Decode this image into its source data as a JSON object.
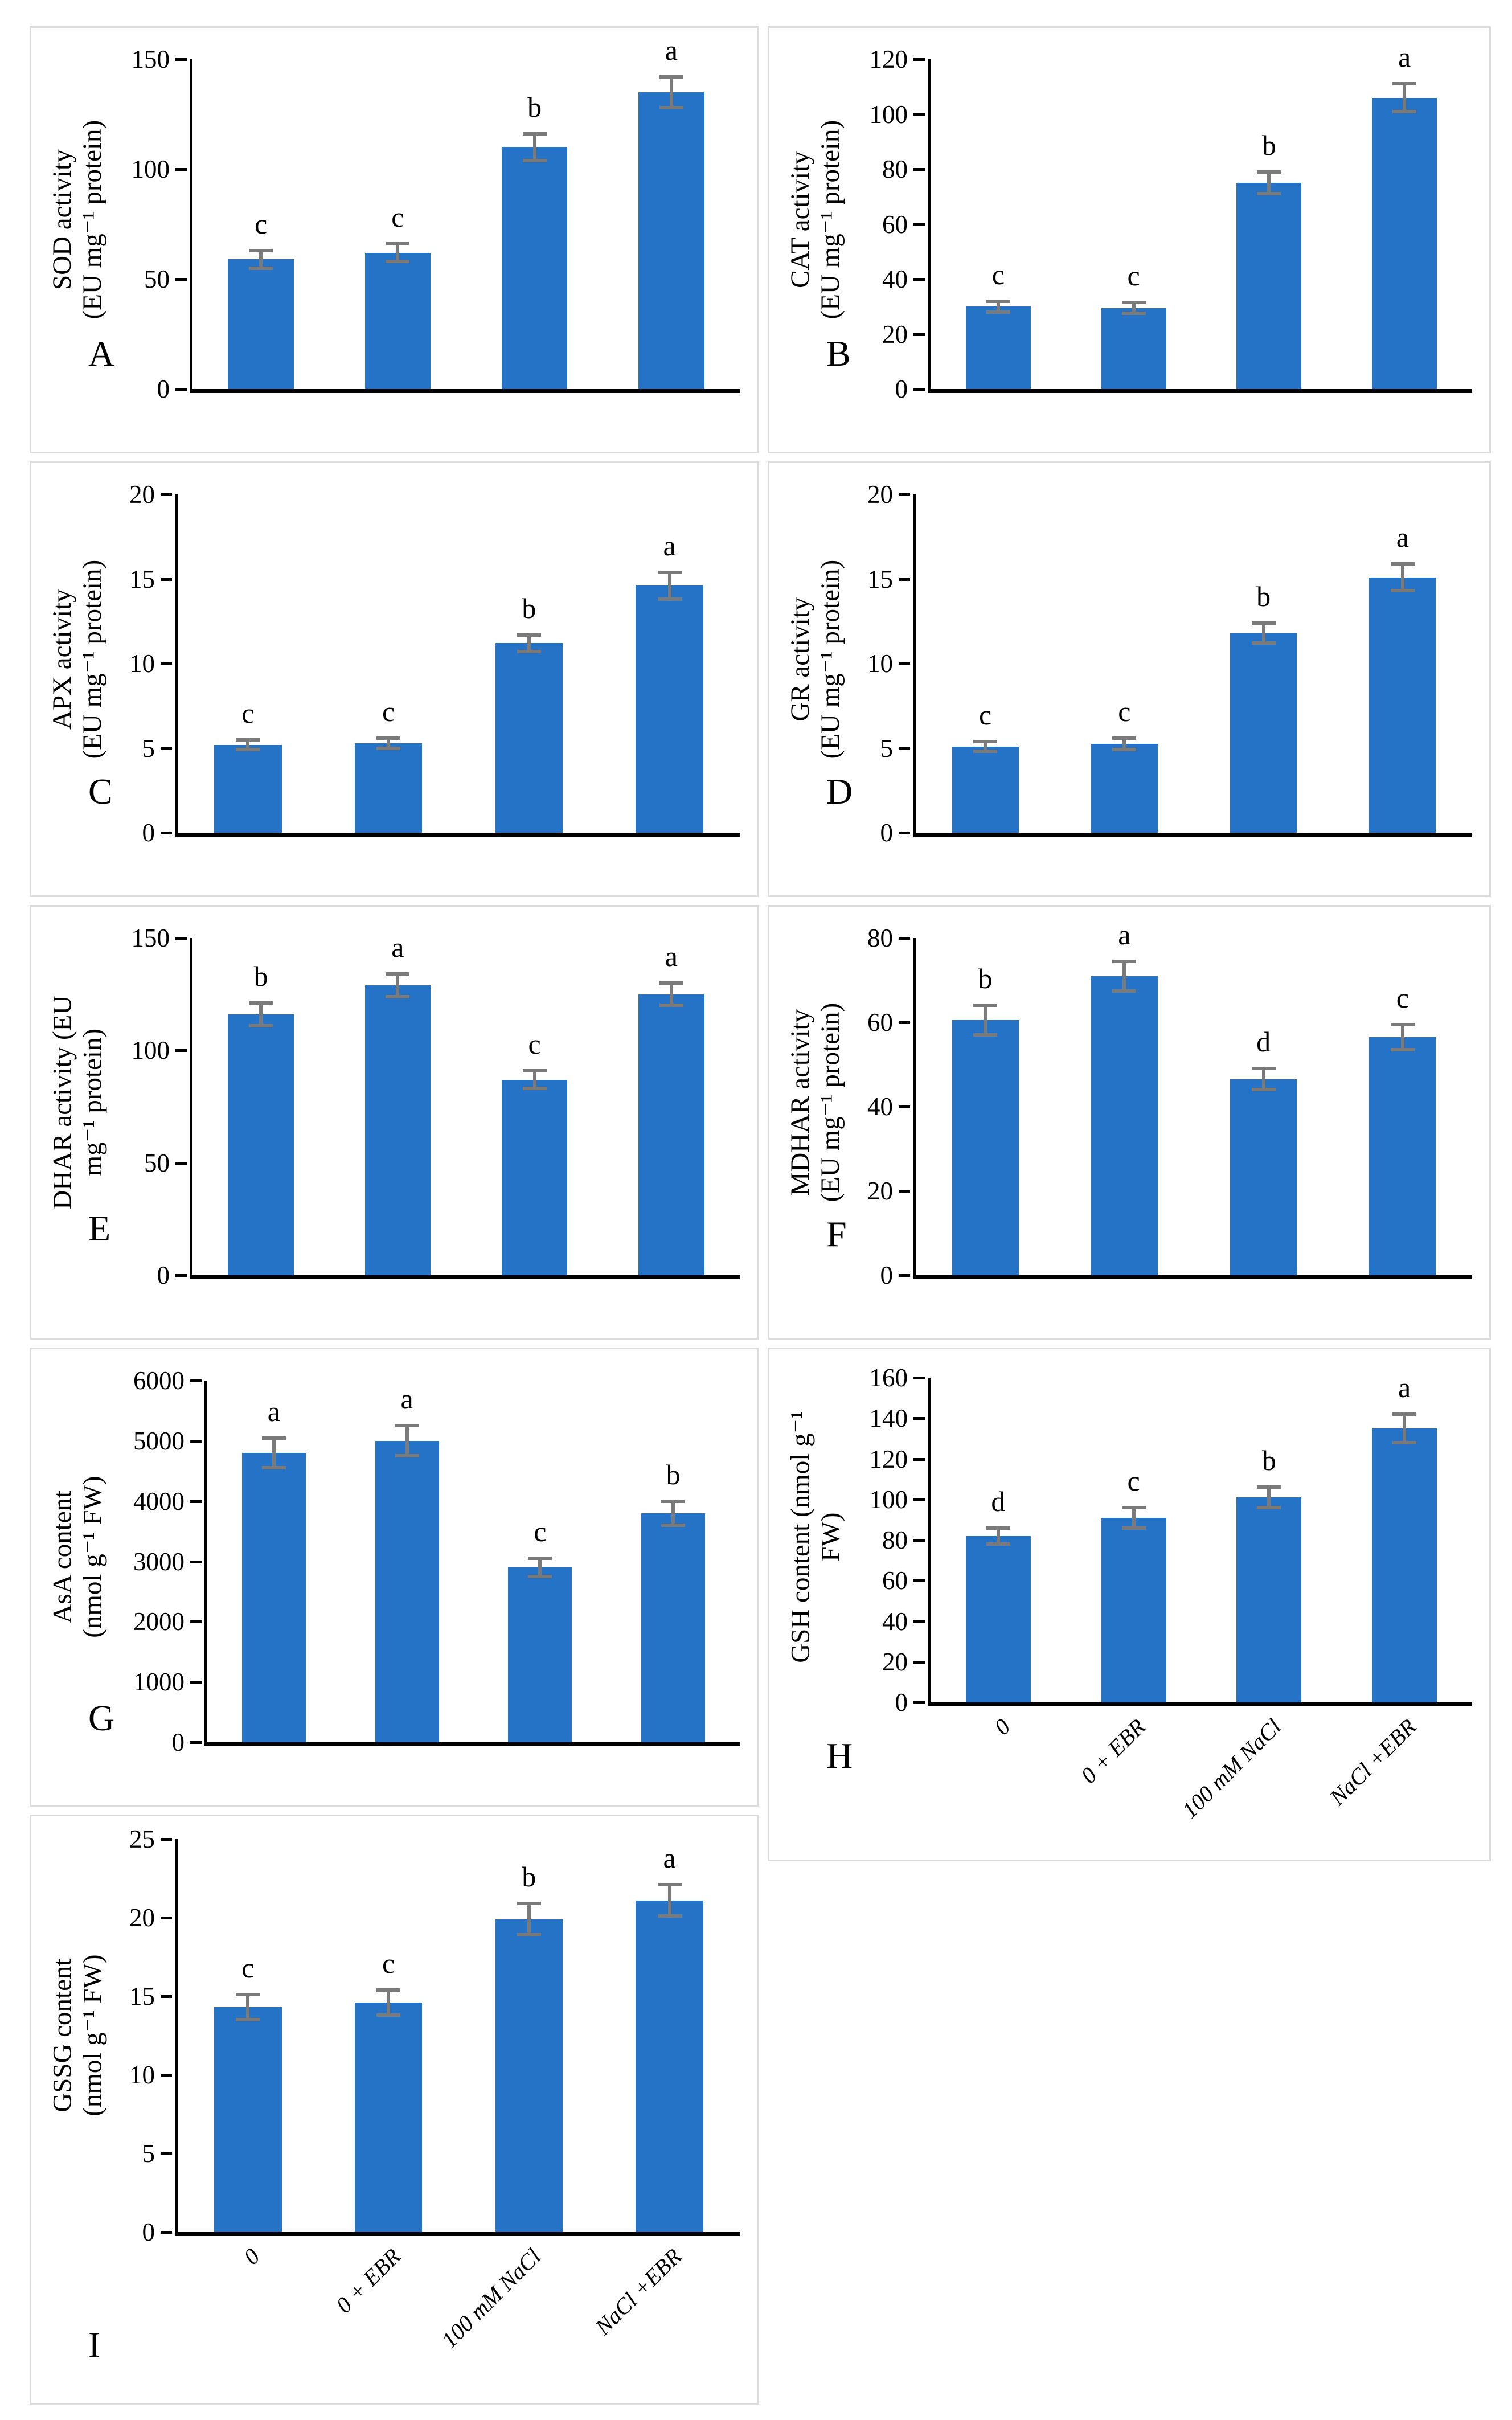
{
  "figure": {
    "background": "#FFFFFF",
    "bar_color": "#2473C7",
    "error_bar_color": "#7A7A7A",
    "panel_border_color": "#DCDCDC",
    "axis_color": "#000000",
    "categories": [
      "0",
      "0 + EBR",
      "100 mM NaCl",
      "NaCl +EBR"
    ]
  },
  "chart_data": [
    {
      "type": "bar",
      "panel_label": "A",
      "ylabel": "SOD activity (EU mg⁻¹ protein)",
      "ylabel_lines": [
        "SOD activity",
        "(EU mg⁻¹ protein)"
      ],
      "categories": [
        "0",
        "0 + EBR",
        "100 mM NaCl",
        "NaCl +EBR"
      ],
      "values": [
        59,
        62,
        110,
        135
      ],
      "errors": [
        4,
        4,
        6,
        7
      ],
      "sig_letters": [
        "c",
        "c",
        "b",
        "a"
      ],
      "ylim": [
        0,
        150
      ],
      "yticks": [
        0,
        50,
        100,
        150
      ],
      "show_xticklabels": false,
      "grid": false,
      "legend": "none"
    },
    {
      "type": "bar",
      "panel_label": "B",
      "ylabel": "CAT activity (EU mg⁻¹ protein)",
      "ylabel_lines": [
        "CAT activity",
        "(EU mg⁻¹ protein)"
      ],
      "categories": [
        "0",
        "0 + EBR",
        "100 mM NaCl",
        "NaCl +EBR"
      ],
      "values": [
        30,
        29.5,
        75,
        106
      ],
      "errors": [
        2,
        2,
        4,
        5
      ],
      "sig_letters": [
        "c",
        "c",
        "b",
        "a"
      ],
      "ylim": [
        0,
        120
      ],
      "yticks": [
        0,
        20,
        40,
        60,
        80,
        100,
        120
      ],
      "show_xticklabels": false,
      "grid": false,
      "legend": "none"
    },
    {
      "type": "bar",
      "panel_label": "C",
      "ylabel": "APX activity (EU mg⁻¹ protein)",
      "ylabel_lines": [
        "APX activity",
        "(EU mg⁻¹ protein)"
      ],
      "categories": [
        "0",
        "0 + EBR",
        "100 mM NaCl",
        "NaCl +EBR"
      ],
      "values": [
        5.2,
        5.3,
        11.2,
        14.6
      ],
      "errors": [
        0.3,
        0.3,
        0.5,
        0.8
      ],
      "sig_letters": [
        "c",
        "c",
        "b",
        "a"
      ],
      "ylim": [
        0,
        20
      ],
      "yticks": [
        0,
        5,
        10,
        15,
        20
      ],
      "show_xticklabels": false,
      "grid": false,
      "legend": "none"
    },
    {
      "type": "bar",
      "panel_label": "D",
      "ylabel": "GR activity (EU mg⁻¹ protein)",
      "ylabel_lines": [
        "GR activity",
        "(EU mg⁻¹ protein)"
      ],
      "categories": [
        "0",
        "0 + EBR",
        "100 mM NaCl",
        "NaCl +EBR"
      ],
      "values": [
        5.1,
        5.25,
        11.8,
        15.1
      ],
      "errors": [
        0.3,
        0.35,
        0.6,
        0.8
      ],
      "sig_letters": [
        "c",
        "c",
        "b",
        "a"
      ],
      "ylim": [
        0,
        20
      ],
      "yticks": [
        0,
        5,
        10,
        15,
        20
      ],
      "show_xticklabels": false,
      "grid": false,
      "legend": "none"
    },
    {
      "type": "bar",
      "panel_label": "E",
      "ylabel": "DHAR activity (EU mg⁻¹ protein)",
      "ylabel_lines": [
        "DHAR activity (EU",
        "mg⁻¹ protein)"
      ],
      "categories": [
        "0",
        "0 + EBR",
        "100 mM NaCl",
        "NaCl +EBR"
      ],
      "values": [
        116,
        129,
        87,
        125
      ],
      "errors": [
        5,
        5,
        4,
        5
      ],
      "sig_letters": [
        "b",
        "a",
        "c",
        "a"
      ],
      "ylim": [
        0,
        150
      ],
      "yticks": [
        0,
        50,
        100,
        150
      ],
      "show_xticklabels": false,
      "grid": false,
      "legend": "none"
    },
    {
      "type": "bar",
      "panel_label": "F",
      "ylabel": "MDHAR activity (EU mg⁻¹ protein)",
      "ylabel_lines": [
        "MDHAR activity",
        "(EU mg⁻¹ protein)"
      ],
      "categories": [
        "0",
        "0 + EBR",
        "100 mM NaCl",
        "NaCl +EBR"
      ],
      "values": [
        60.5,
        71,
        46.5,
        56.5
      ],
      "errors": [
        3.5,
        3.5,
        2.5,
        3
      ],
      "sig_letters": [
        "b",
        "a",
        "d",
        "c"
      ],
      "ylim": [
        0,
        80
      ],
      "yticks": [
        0,
        20,
        40,
        60,
        80
      ],
      "show_xticklabels": false,
      "grid": false,
      "legend": "none"
    },
    {
      "type": "bar",
      "panel_label": "G",
      "ylabel": "AsA content (nmol g⁻¹ FW)",
      "ylabel_lines": [
        "AsA content",
        "(nmol g⁻¹ FW)"
      ],
      "categories": [
        "0",
        "0 + EBR",
        "100 mM NaCl",
        "NaCl +EBR"
      ],
      "values": [
        4800,
        5000,
        2900,
        3800
      ],
      "errors": [
        250,
        250,
        150,
        200
      ],
      "sig_letters": [
        "a",
        "a",
        "c",
        "b"
      ],
      "ylim": [
        0,
        6000
      ],
      "yticks": [
        0,
        1000,
        2000,
        3000,
        4000,
        5000,
        6000
      ],
      "show_xticklabels": false,
      "grid": false,
      "legend": "none"
    },
    {
      "type": "bar",
      "panel_label": "H",
      "ylabel": "GSH content (nmol g⁻¹ FW)",
      "ylabel_lines": [
        "GSH content (nmol g⁻¹",
        "FW)"
      ],
      "categories": [
        "0",
        "0 + EBR",
        "100 mM NaCl",
        "NaCl +EBR"
      ],
      "values": [
        82,
        91,
        101,
        135
      ],
      "errors": [
        4,
        5,
        5,
        7
      ],
      "sig_letters": [
        "d",
        "c",
        "b",
        "a"
      ],
      "ylim": [
        0,
        160
      ],
      "yticks": [
        0,
        20,
        40,
        60,
        80,
        100,
        120,
        140,
        160
      ],
      "show_xticklabels": true,
      "grid": false,
      "legend": "none"
    },
    {
      "type": "bar",
      "panel_label": "I",
      "ylabel": "GSSG content (nmol g⁻¹ FW)",
      "ylabel_lines": [
        "GSSG content",
        "(nmol g⁻¹ FW)"
      ],
      "categories": [
        "0",
        "0 + EBR",
        "100 mM NaCl",
        "NaCl +EBR"
      ],
      "values": [
        14.3,
        14.6,
        19.9,
        21.1
      ],
      "errors": [
        0.8,
        0.8,
        1.0,
        1.0
      ],
      "sig_letters": [
        "c",
        "c",
        "b",
        "a"
      ],
      "ylim": [
        0,
        25
      ],
      "yticks": [
        0,
        5,
        10,
        15,
        20,
        25
      ],
      "show_xticklabels": true,
      "grid": false,
      "legend": "none"
    }
  ]
}
